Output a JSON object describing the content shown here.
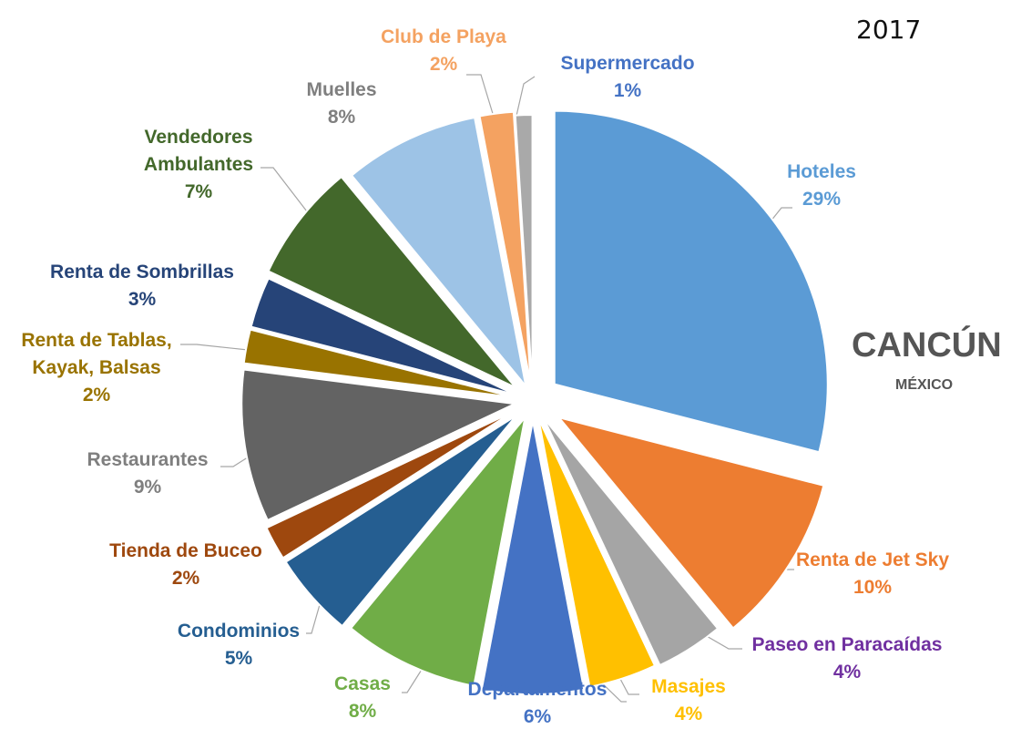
{
  "chart_data": {
    "type": "pie",
    "title": "2017",
    "subtitle_main": "CANCÚN",
    "subtitle_sub": "MÉXICO",
    "slices": [
      {
        "label": "Hoteles",
        "pct_label": "29%",
        "value": 29,
        "color": "#5b9bd5",
        "text_color": "#5b9bd5"
      },
      {
        "label": "Renta de Jet Sky",
        "pct_label": "10%",
        "value": 10,
        "color": "#ed7d31",
        "text_color": "#ed7d31"
      },
      {
        "label": "Paseo en Paracaídas",
        "pct_label": "4%",
        "value": 4,
        "color": "#a5a5a5",
        "text_color": "#7030a0"
      },
      {
        "label": "Masajes",
        "pct_label": "4%",
        "value": 4,
        "color": "#ffc000",
        "text_color": "#ffc000"
      },
      {
        "label": "Departamentos",
        "pct_label": "6%",
        "value": 6,
        "color": "#4472c4",
        "text_color": "#4472c4"
      },
      {
        "label": "Casas",
        "pct_label": "8%",
        "value": 8,
        "color": "#70ad47",
        "text_color": "#70ad47"
      },
      {
        "label": "Condominios",
        "pct_label": "5%",
        "value": 5,
        "color": "#255e91",
        "text_color": "#255e91"
      },
      {
        "label": "Tienda de Buceo",
        "pct_label": "2%",
        "value": 2,
        "color": "#9e480e",
        "text_color": "#9e480e"
      },
      {
        "label": "Restaurantes",
        "pct_label": "9%",
        "value": 9,
        "color": "#636363",
        "text_color": "#7f7f7f"
      },
      {
        "label": "Renta de Tablas,\nKayak, Balsas",
        "pct_label": "2%",
        "value": 2,
        "color": "#997300",
        "text_color": "#997300"
      },
      {
        "label": "Renta de Sombrillas",
        "pct_label": "3%",
        "value": 3,
        "color": "#264478",
        "text_color": "#264478"
      },
      {
        "label": "Vendedores\nAmbulantes",
        "pct_label": "7%",
        "value": 7,
        "color": "#43682b",
        "text_color": "#43682b"
      },
      {
        "label": "Muelles",
        "pct_label": "8%",
        "value": 8,
        "color": "#9dc3e6",
        "text_color": "#7f7f7f"
      },
      {
        "label": "Club de Playa",
        "pct_label": "2%",
        "value": 2,
        "color": "#f4a261",
        "text_color": "#f4a261"
      },
      {
        "label": "Supermercado",
        "pct_label": "1%",
        "value": 1,
        "color": "#a9a9a9",
        "text_color": "#4472c4"
      }
    ]
  }
}
